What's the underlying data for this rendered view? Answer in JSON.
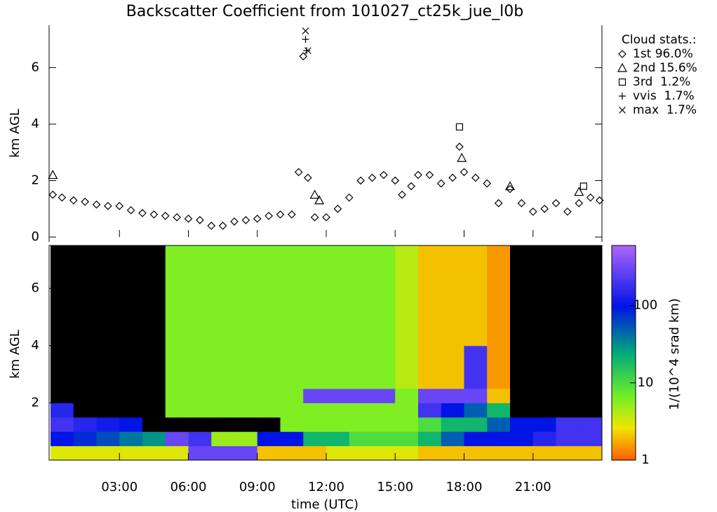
{
  "chart_data": [
    {
      "type": "scatter",
      "title": "Backscatter Coefficient from 101027_ct25k_jue_l0b",
      "ylabel": "km AGL",
      "xlim": [
        0,
        24
      ],
      "ylim": [
        0,
        7.5
      ],
      "yticks": [
        0,
        2,
        4,
        6
      ],
      "legend_title": "Cloud stats.:",
      "legend": "right",
      "series": [
        {
          "name": "1st 96.0%",
          "marker": "diamond",
          "color": "#000000",
          "x": [
            0.1,
            0.5,
            1,
            1.5,
            2,
            2.5,
            3,
            3.5,
            4,
            4.5,
            5,
            5.5,
            6,
            6.5,
            7,
            7.5,
            8,
            8.5,
            9,
            9.5,
            10,
            10.5,
            10.8,
            11,
            11.2,
            11.5,
            12,
            12.5,
            13,
            13.5,
            14,
            14.5,
            15,
            15.3,
            15.7,
            16,
            16.5,
            17,
            17.5,
            17.8,
            18,
            18.5,
            19,
            19.5,
            20,
            20.5,
            21,
            21.5,
            22,
            22.5,
            23,
            23.5,
            23.9
          ],
          "y": [
            1.5,
            1.4,
            1.3,
            1.25,
            1.15,
            1.1,
            1.1,
            0.95,
            0.85,
            0.8,
            0.75,
            0.7,
            0.65,
            0.6,
            0.4,
            0.4,
            0.55,
            0.6,
            0.65,
            0.75,
            0.8,
            0.8,
            2.3,
            6.4,
            2.1,
            0.7,
            0.7,
            1.0,
            1.4,
            2.0,
            2.1,
            2.2,
            2.0,
            1.5,
            1.8,
            2.2,
            2.2,
            1.9,
            2.1,
            3.2,
            2.3,
            2.1,
            1.9,
            1.2,
            1.7,
            1.2,
            0.9,
            1.0,
            1.2,
            0.9,
            1.2,
            1.4,
            1.3
          ]
        },
        {
          "name": "2nd 15.6%",
          "marker": "triangle",
          "color": "#000000",
          "x": [
            0.1,
            11.5,
            11.7,
            17.9,
            20,
            23
          ],
          "y": [
            2.2,
            1.5,
            1.3,
            2.8,
            1.8,
            1.6
          ]
        },
        {
          "name": "3rd  1.2%",
          "marker": "square",
          "color": "#000000",
          "x": [
            17.8,
            23.2
          ],
          "y": [
            3.9,
            1.8
          ]
        },
        {
          "name": "vvis  1.7%",
          "marker": "plus",
          "color": "#000000",
          "x": [
            11.1,
            11.15
          ],
          "y": [
            7.0,
            6.6
          ]
        },
        {
          "name": "max  1.7%",
          "marker": "cross",
          "color": "#000000",
          "x": [
            11.1,
            11.2
          ],
          "y": [
            7.3,
            6.6
          ]
        }
      ]
    },
    {
      "type": "heatmap",
      "ylabel": "km AGL",
      "xlabel": "time (UTC)",
      "xlim": [
        0,
        24
      ],
      "ylim": [
        0,
        7.5
      ],
      "yticks": [
        2,
        4,
        6
      ],
      "xticks": [
        {
          "value": 3,
          "label": "03:00"
        },
        {
          "value": 6,
          "label": "06:00"
        },
        {
          "value": 9,
          "label": "09:00"
        },
        {
          "value": 12,
          "label": "12:00"
        },
        {
          "value": 15,
          "label": "15:00"
        },
        {
          "value": 18,
          "label": "18:00"
        },
        {
          "value": 21,
          "label": "21:00"
        }
      ],
      "x_bins": [
        0,
        1,
        2,
        3,
        4,
        5,
        6,
        7,
        8,
        9,
        10,
        11,
        12,
        13,
        14,
        15,
        16,
        17,
        18,
        19,
        20,
        21,
        22,
        23,
        24
      ],
      "y_bins": [
        0,
        0.5,
        1,
        1.5,
        2,
        2.5,
        4,
        7.5
      ],
      "z": [
        [
          3,
          3,
          3,
          3,
          3,
          3,
          300,
          300,
          300,
          2,
          2,
          2,
          3,
          3,
          3,
          3,
          2,
          2,
          2,
          2,
          2,
          2,
          2,
          2
        ],
        [
          100,
          80,
          60,
          40,
          30,
          300,
          200,
          5,
          5,
          100,
          100,
          20,
          20,
          10,
          10,
          10,
          20,
          50,
          100,
          100,
          100,
          150,
          200,
          200
        ],
        [
          200,
          150,
          120,
          100,
          0.5,
          0.5,
          0.5,
          0.5,
          0.5,
          0.5,
          6,
          6,
          6,
          6,
          6,
          6,
          10,
          20,
          20,
          50,
          100,
          100,
          200,
          200
        ],
        [
          150,
          0.5,
          0.5,
          0.5,
          0.5,
          6,
          6,
          6,
          6,
          6,
          6,
          6,
          6,
          6,
          6,
          6,
          200,
          100,
          50,
          20,
          0.5,
          0.5,
          0.5,
          0.5
        ],
        [
          0.5,
          0.5,
          0.5,
          0.5,
          0.5,
          6,
          6,
          6,
          6,
          6,
          6,
          300,
          300,
          300,
          300,
          6,
          300,
          300,
          300,
          2,
          0.5,
          0.5,
          0.5,
          0.5
        ],
        [
          0.5,
          0.5,
          0.5,
          0.5,
          0.5,
          6,
          6,
          6,
          6,
          6,
          6,
          6,
          6,
          6,
          6,
          4,
          2,
          2,
          200,
          1.5,
          0.5,
          0.5,
          0.5,
          0.5
        ],
        [
          0.5,
          0.5,
          0.5,
          0.5,
          0.5,
          6,
          6,
          6,
          6,
          6,
          6,
          6,
          6,
          6,
          6,
          4,
          2,
          2,
          2,
          1.5,
          0.5,
          0.5,
          0.5,
          0.5
        ]
      ],
      "colorbar": {
        "label": "1/(10^4 srad km)",
        "log": true,
        "clim": [
          1,
          600
        ],
        "ticks": [
          1,
          10,
          100
        ]
      }
    }
  ]
}
